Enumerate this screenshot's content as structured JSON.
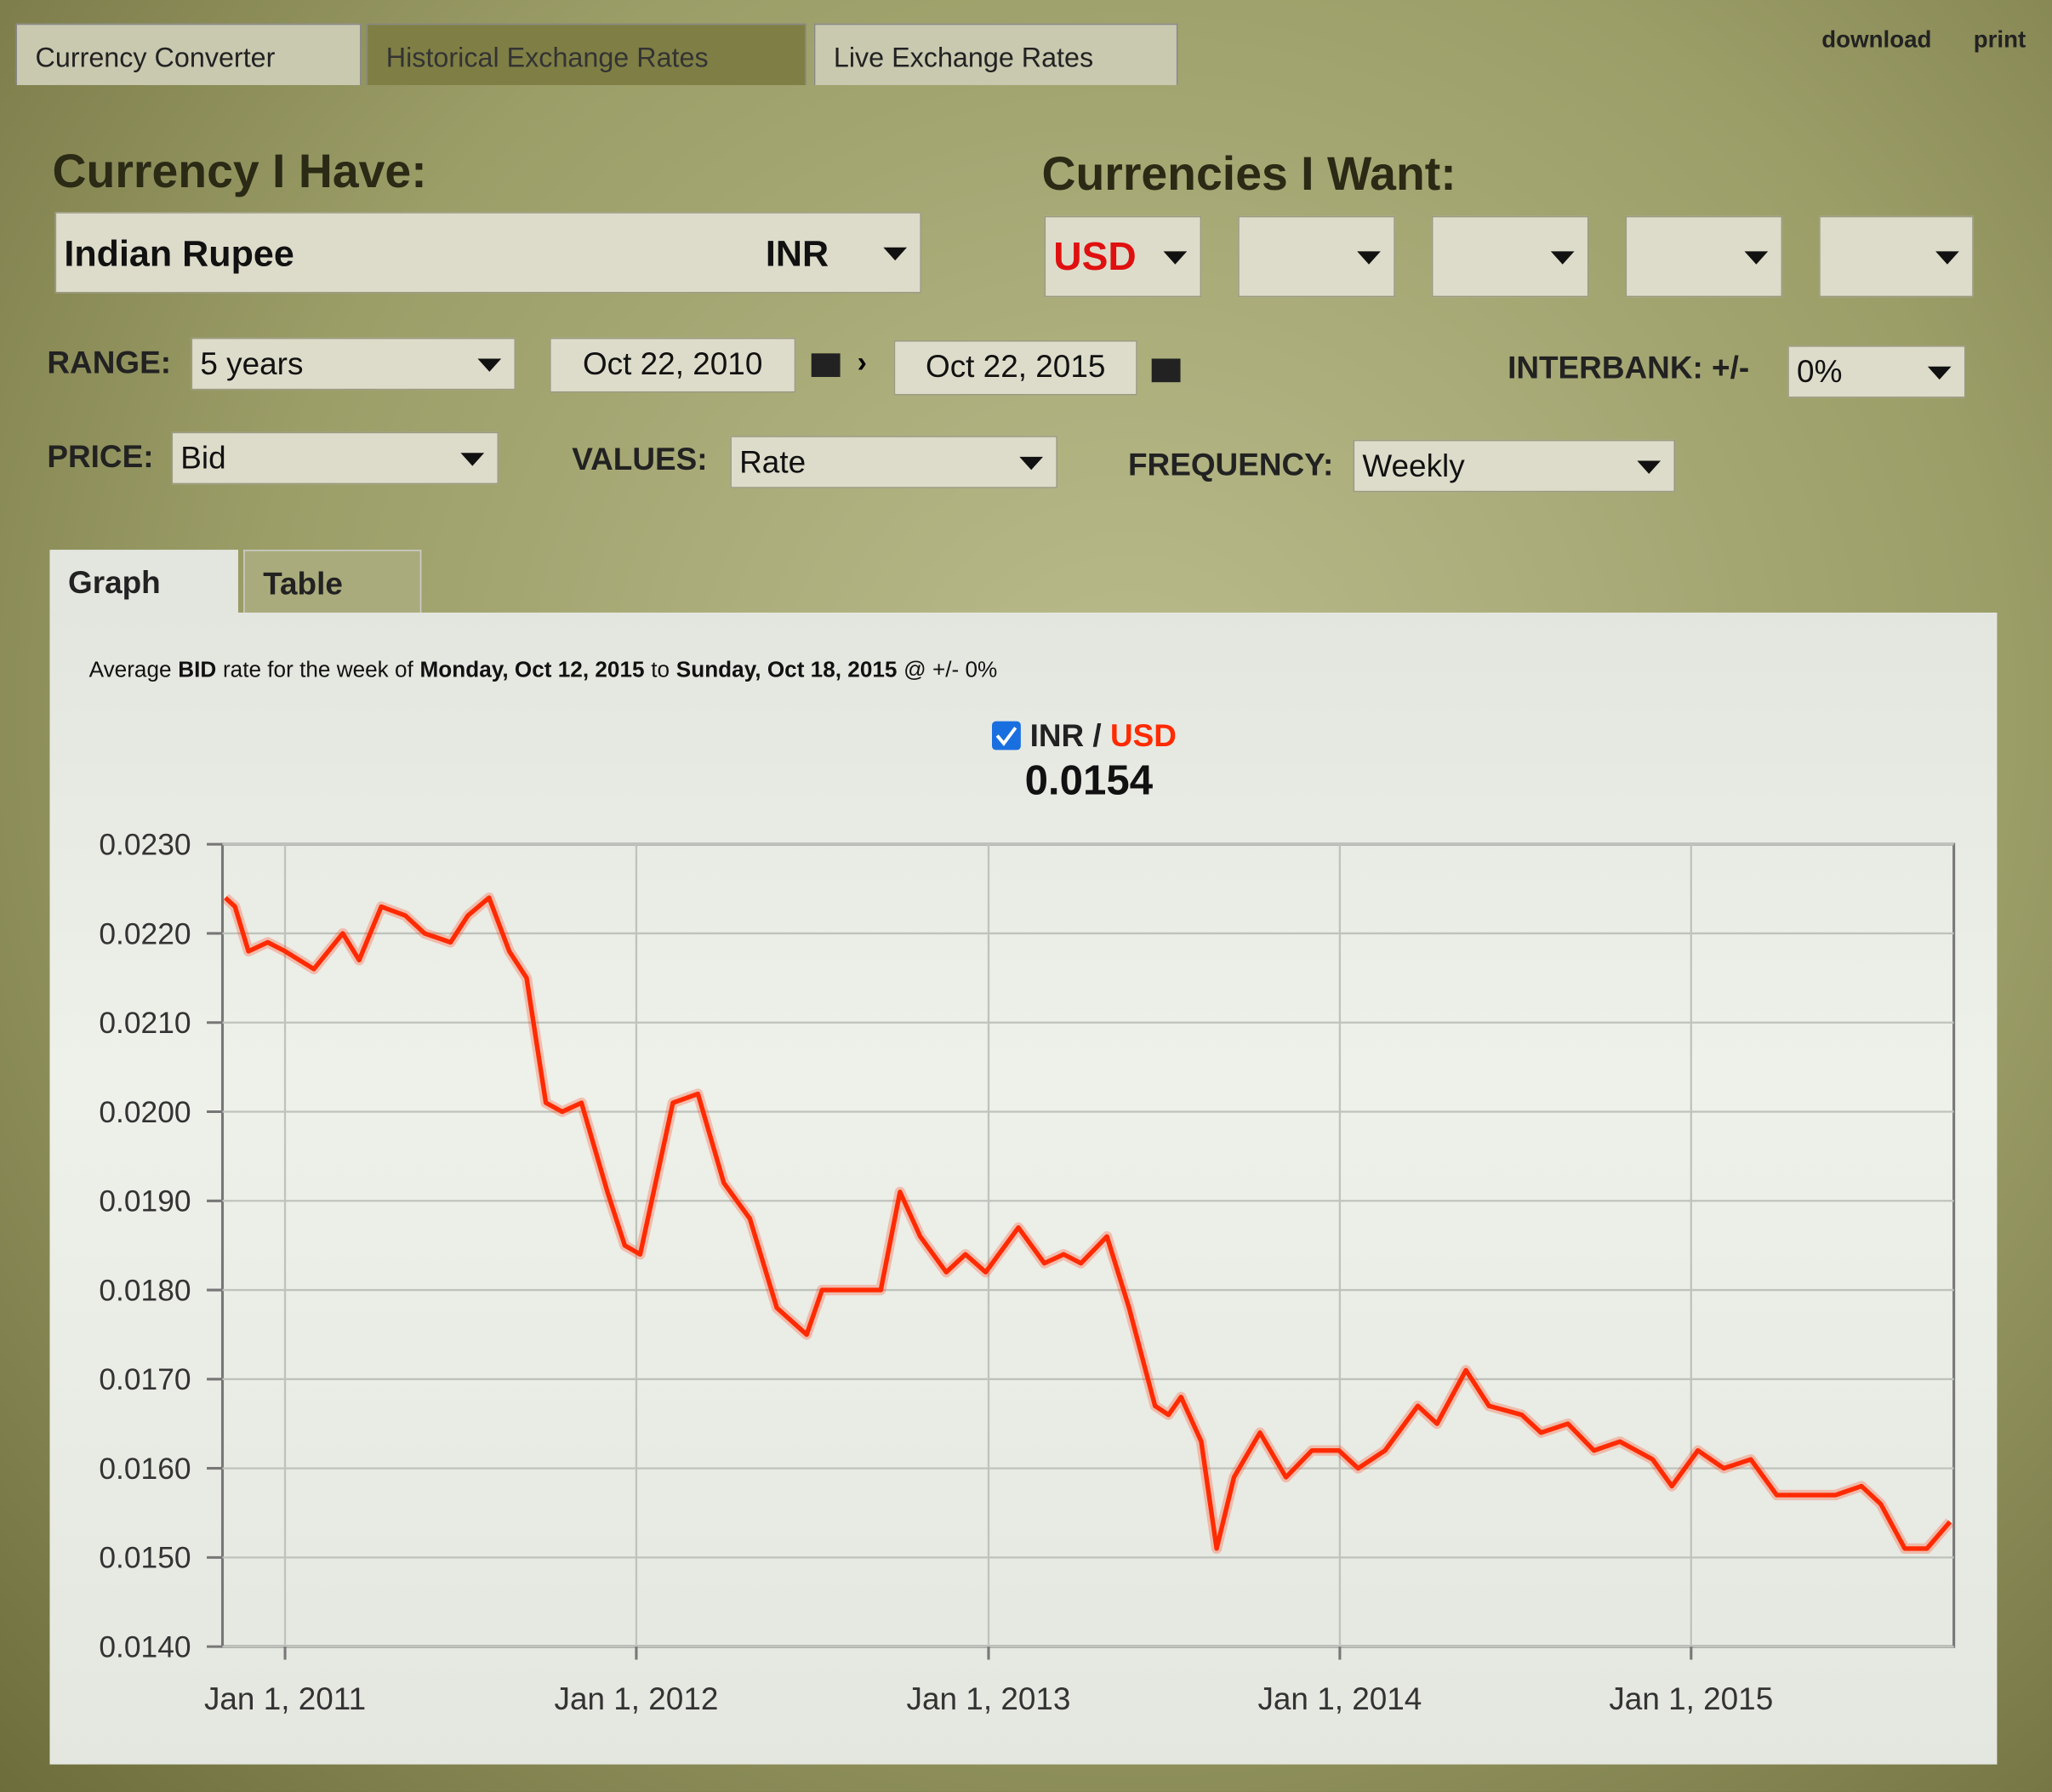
{
  "tabs": [
    "Currency Converter",
    "Historical Exchange Rates",
    "Live Exchange Rates"
  ],
  "links": [
    "download",
    "print"
  ],
  "have": {
    "label": "Currency I Have:",
    "name": "Indian Rupee",
    "code": "INR"
  },
  "want": {
    "label": "Currencies I Want:",
    "codes": [
      "USD"
    ]
  },
  "range": {
    "label": "RANGE:",
    "value": "5 years",
    "from": "Oct 22, 2010",
    "to": "Oct 22, 2015"
  },
  "interbank": {
    "label": "INTERBANK: +/-",
    "value": "0%"
  },
  "price": {
    "label": "PRICE:",
    "value": "Bid"
  },
  "values_select": {
    "label": "VALUES:",
    "value": "Rate"
  },
  "frequency": {
    "label": "FREQUENCY:",
    "value": "Weekly"
  },
  "view_tabs": [
    "Graph",
    "Table"
  ],
  "chart_data": {
    "type": "line",
    "subtitle_parts": [
      "Average",
      "BID",
      "rate for the week of",
      "Monday, Oct 12, 2015",
      "to",
      "Sunday, Oct 18, 2015",
      "@ +/- 0%"
    ],
    "current_value": 0.0154,
    "x": [
      "2010-10-31",
      "2010-11-10",
      "2010-11-24",
      "2010-12-14",
      "2011-01-01",
      "2011-01-31",
      "2011-03-02",
      "2011-03-19",
      "2011-04-11",
      "2011-05-06",
      "2011-05-26",
      "2011-06-22",
      "2011-07-10",
      "2011-08-01",
      "2011-08-22",
      "2011-09-09",
      "2011-09-29",
      "2011-10-16",
      "2011-11-05",
      "2011-12-02",
      "2011-12-20",
      "2012-01-05",
      "2012-02-08",
      "2012-03-05",
      "2012-04-01",
      "2012-04-28",
      "2012-05-26",
      "2012-06-26",
      "2012-07-12",
      "2012-08-08",
      "2012-09-11",
      "2012-10-01",
      "2012-10-22",
      "2012-11-18",
      "2012-12-08",
      "2012-12-29",
      "2013-02-01",
      "2013-02-28",
      "2013-03-20",
      "2013-04-07",
      "2013-05-04",
      "2013-05-27",
      "2013-06-23",
      "2013-07-07",
      "2013-07-20",
      "2013-08-10",
      "2013-08-26",
      "2013-09-13",
      "2013-10-10",
      "2013-11-06",
      "2013-12-03",
      "2013-12-31",
      "2014-01-20",
      "2014-02-17",
      "2014-03-23",
      "2014-04-12",
      "2014-05-12",
      "2014-06-05",
      "2014-07-09",
      "2014-07-29",
      "2014-08-26",
      "2014-09-22",
      "2014-10-19",
      "2014-11-22",
      "2014-12-12",
      "2015-01-08",
      "2015-02-04",
      "2015-03-04",
      "2015-03-31",
      "2015-04-27",
      "2015-05-31",
      "2015-06-27",
      "2015-07-17",
      "2015-08-11",
      "2015-09-03",
      "2015-09-27"
    ],
    "series": [
      {
        "name": "INR / USD",
        "color": "#ff2a00",
        "values": [
          0.0224,
          0.0223,
          0.0218,
          0.0219,
          0.0218,
          0.0216,
          0.022,
          0.0217,
          0.0223,
          0.0222,
          0.022,
          0.0219,
          0.0222,
          0.0224,
          0.0218,
          0.0215,
          0.0201,
          0.02,
          0.0201,
          0.0191,
          0.0185,
          0.0184,
          0.0201,
          0.0202,
          0.0192,
          0.0188,
          0.0178,
          0.0175,
          0.018,
          0.018,
          0.018,
          0.0191,
          0.0186,
          0.0182,
          0.0184,
          0.0182,
          0.0187,
          0.0183,
          0.0184,
          0.0183,
          0.0186,
          0.0178,
          0.0167,
          0.0166,
          0.0168,
          0.0163,
          0.0151,
          0.0159,
          0.0164,
          0.0159,
          0.0162,
          0.0162,
          0.016,
          0.0162,
          0.0167,
          0.0165,
          0.0171,
          0.0167,
          0.0166,
          0.0164,
          0.0165,
          0.0162,
          0.0163,
          0.0161,
          0.0158,
          0.0162,
          0.016,
          0.0161,
          0.0157,
          0.0157,
          0.0157,
          0.0158,
          0.0156,
          0.0151,
          0.0151,
          0.0154
        ]
      }
    ],
    "xlim": [
      "2010-10-28",
      "2015-10-01"
    ],
    "xticks": [
      {
        "value": "2011-01-01",
        "label": "Jan 1, 2011"
      },
      {
        "value": "2012-01-01",
        "label": "Jan 1, 2012"
      },
      {
        "value": "2013-01-01",
        "label": "Jan 1, 2013"
      },
      {
        "value": "2014-01-01",
        "label": "Jan 1, 2014"
      },
      {
        "value": "2015-01-01",
        "label": "Jan 1, 2015"
      }
    ],
    "ylim": [
      0.014,
      0.023
    ],
    "yticks": [
      {
        "value": 0.014,
        "label": "0.0140"
      },
      {
        "value": 0.015,
        "label": "0.0150"
      },
      {
        "value": 0.016,
        "label": "0.0160"
      },
      {
        "value": 0.017,
        "label": "0.0170"
      },
      {
        "value": 0.018,
        "label": "0.0180"
      },
      {
        "value": 0.019,
        "label": "0.0190"
      },
      {
        "value": 0.02,
        "label": "0.0200"
      },
      {
        "value": 0.021,
        "label": "0.0210"
      },
      {
        "value": 0.022,
        "label": "0.0220"
      },
      {
        "value": 0.023,
        "label": "0.0230"
      }
    ],
    "grid": true
  }
}
